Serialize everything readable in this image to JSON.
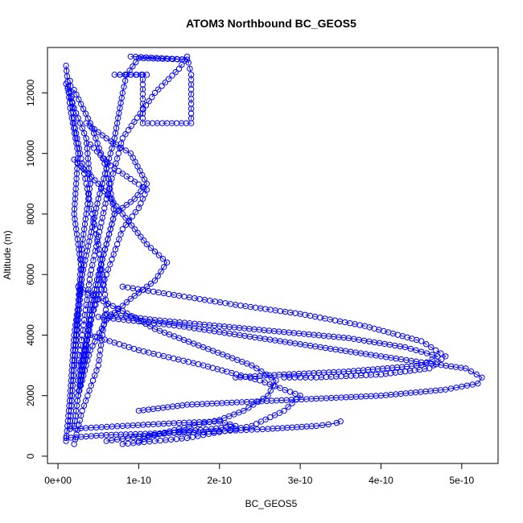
{
  "chart_data": {
    "type": "line",
    "title": "ATOM3 Northbound BC_GEOS5",
    "xlabel": "BC_GEOS5",
    "ylabel": "Altitude (m)",
    "xlim": [
      -1.3e-11,
      5.45e-10
    ],
    "ylim": [
      -240,
      13500
    ],
    "x_ticks": [
      0,
      1e-10,
      2e-10,
      3e-10,
      4e-10,
      5e-10
    ],
    "x_tick_labels": [
      "0e+00",
      "1e-10",
      "2e-10",
      "3e-10",
      "4e-10",
      "5e-10"
    ],
    "y_ticks": [
      0,
      2000,
      4000,
      6000,
      8000,
      10000,
      12000
    ],
    "y_tick_labels": [
      "0",
      "2000",
      "4000",
      "6000",
      "8000",
      "10000",
      "12000"
    ],
    "marker": "open-circle",
    "line_style": "solid-and-dashed",
    "series_color": "#0000ff",
    "grid": false,
    "legend": "none",
    "series": [
      {
        "x": [
          1e-11,
          1.5e-11,
          2.5e-11,
          2e-11,
          3e-11,
          2e-11,
          1.5e-11,
          1e-11
        ],
        "y": [
          12900,
          11500,
          10000,
          8000,
          6000,
          4000,
          2000,
          500
        ]
      },
      {
        "x": [
          1e-11,
          2e-11,
          3.5e-11,
          4e-11,
          3e-11,
          2.5e-11,
          2e-11,
          1.5e-11
        ],
        "y": [
          12300,
          11500,
          10500,
          9000,
          7000,
          5000,
          3000,
          1000
        ]
      },
      {
        "x": [
          1.1e-10,
          7e-11,
          9e-11,
          1.05e-10,
          1.05e-10,
          1.65e-10,
          1.65e-10,
          1.6e-10,
          1.5e-10,
          1.2e-10,
          8e-11,
          6e-11,
          4e-11,
          2.5e-11
        ],
        "y": [
          12600,
          12600,
          12600,
          12600,
          11000,
          11000,
          12600,
          13200,
          12800,
          12000,
          10500,
          8500,
          6000,
          3000
        ]
      },
      {
        "x": [
          9e-11,
          1.6e-10,
          1e-10,
          8.5e-11,
          8e-11,
          7e-11,
          5e-11,
          3e-11,
          2e-11
        ],
        "y": [
          13200,
          13100,
          13150,
          12600,
          12000,
          10500,
          8500,
          6000,
          3000
        ]
      },
      {
        "x": [
          3.5e-11,
          6e-11,
          9e-11,
          1.1e-10,
          9.5e-11,
          7e-11,
          5.5e-11,
          4.5e-11,
          3e-11,
          2e-11
        ],
        "y": [
          11000,
          10500,
          10000,
          9000,
          8500,
          8000,
          6500,
          5000,
          3000,
          1000
        ]
      },
      {
        "x": [
          4e-11,
          6.5e-11,
          1.1e-10,
          1e-10,
          8e-11,
          6e-11,
          4e-11,
          2.5e-11
        ],
        "y": [
          10300,
          9600,
          8800,
          8200,
          7500,
          6000,
          4500,
          2500
        ]
      },
      {
        "x": [
          2e-11,
          5e-11,
          8e-11,
          1.1e-10,
          1.35e-10,
          1.2e-10,
          9e-11,
          6e-11,
          4e-11,
          2.5e-11
        ],
        "y": [
          9800,
          9000,
          8000,
          7000,
          6400,
          5800,
          5200,
          4500,
          3500,
          2000
        ]
      },
      {
        "x": [
          2.5e-11,
          5e-11,
          8e-11,
          1.2e-10,
          1.8e-10,
          2.4e-10,
          2.7e-10,
          2.6e-10,
          2.3e-10,
          2e-10,
          1.5e-10,
          1.2e-10,
          1e-10
        ],
        "y": [
          5600,
          5200,
          4800,
          4200,
          3600,
          3000,
          2500,
          2000,
          1500,
          1200,
          900,
          700,
          500
        ]
      },
      {
        "x": [
          8e-11,
          1.5e-10,
          2.2e-10,
          3e-10,
          3.8e-10,
          4.5e-10,
          4.8e-10,
          4.6e-10,
          4e-10,
          3.2e-10,
          2.8e-10
        ],
        "y": [
          5600,
          5300,
          5000,
          4700,
          4300,
          3800,
          3300,
          2900,
          2700,
          2600,
          2600
        ]
      },
      {
        "x": [
          6e-11,
          1.2e-10,
          2e-10,
          2.8e-10,
          3.6e-10,
          4.3e-10,
          4.7e-10,
          4.5e-10,
          3.6e-10,
          2.8e-10,
          2.2e-10
        ],
        "y": [
          4700,
          4500,
          4300,
          4100,
          3900,
          3600,
          3300,
          3000,
          2800,
          2700,
          2600
        ]
      },
      {
        "x": [
          5e-11,
          1.5e-10,
          2.5e-10,
          3.5e-10,
          4.5e-10,
          5.05e-10,
          5.25e-10,
          5.2e-10,
          4.8e-10,
          4e-10,
          3.2e-10,
          2.4e-10,
          1.6e-10,
          1e-10
        ],
        "y": [
          4600,
          4300,
          3900,
          3500,
          3100,
          2900,
          2600,
          2400,
          2200,
          2000,
          1900,
          1800,
          1700,
          1500
        ]
      },
      {
        "x": [
          4e-11,
          1e-10,
          1.8e-10,
          2.5e-10,
          3e-10,
          2.8e-10,
          2.4e-10,
          2e-10,
          1.6e-10,
          1.2e-10,
          8e-11
        ],
        "y": [
          4000,
          3500,
          3000,
          2500,
          2000,
          1500,
          1000,
          800,
          600,
          500,
          400
        ]
      },
      {
        "x": [
          1e-11,
          6e-11,
          1.2e-10,
          1.8e-10,
          2.2e-10,
          2.6e-10,
          2.9e-10,
          3.2e-10,
          3.35e-10,
          3.45e-10,
          3.5e-10
        ],
        "y": [
          600,
          700,
          750,
          800,
          850,
          900,
          950,
          1000,
          1050,
          1100,
          1150
        ]
      },
      {
        "x": [
          1.5e-11,
          8e-11,
          1.5e-10,
          2e-10,
          2.2e-10,
          1.9e-10,
          1.5e-10,
          1e-10,
          6e-11
        ],
        "y": [
          900,
          1000,
          1100,
          1150,
          1000,
          900,
          800,
          650,
          500
        ]
      },
      {
        "x": [
          1.5e-11,
          2e-11,
          3.5e-11,
          5e-11,
          6e-11,
          5e-11,
          3e-11,
          2e-11
        ],
        "y": [
          12400,
          11000,
          9000,
          7000,
          5000,
          3000,
          1500,
          400
        ]
      },
      {
        "x": [
          2e-11,
          4e-11,
          6e-11,
          7e-11,
          5.5e-11,
          4e-11,
          3.5e-11,
          2.5e-11
        ],
        "y": [
          12100,
          11000,
          9500,
          8000,
          6500,
          5000,
          3500,
          2000
        ]
      }
    ]
  }
}
